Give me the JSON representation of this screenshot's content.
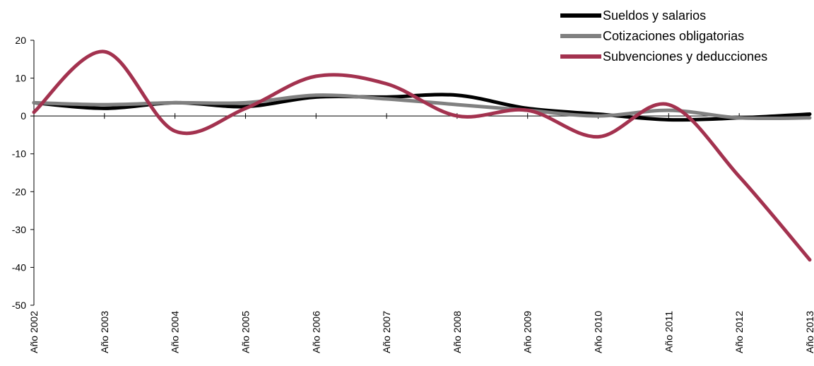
{
  "chart_data": {
    "type": "line",
    "title": "",
    "xlabel": "",
    "ylabel": "",
    "ylim": [
      -50,
      20
    ],
    "yticks": [
      20,
      10,
      0,
      -10,
      -20,
      -30,
      -40,
      -50
    ],
    "categories": [
      "Año 2002",
      "Año 2003",
      "Año 2004",
      "Año 2005",
      "Año 2006",
      "Año 2007",
      "Año 2008",
      "Año 2009",
      "Año 2010",
      "Año 2011",
      "Año 2012",
      "Año 2013"
    ],
    "grid": false,
    "legend_position": "top-right",
    "smooth": true,
    "series": [
      {
        "name": "Sueldos y salarios",
        "color": "#000000",
        "values": [
          3.5,
          2.0,
          3.5,
          2.5,
          5.0,
          5.0,
          5.5,
          2.0,
          0.5,
          -1.0,
          -0.5,
          0.5
        ]
      },
      {
        "name": "Cotizaciones obligatorias",
        "color": "#808080",
        "values": [
          3.5,
          3.0,
          3.5,
          3.5,
          5.5,
          4.5,
          3.0,
          1.5,
          0.0,
          1.5,
          -0.5,
          -0.5
        ]
      },
      {
        "name": "Subvenciones y deducciones",
        "color": "#A3324F",
        "values": [
          1.0,
          17.0,
          -4.0,
          2.0,
          10.5,
          8.5,
          0.0,
          1.5,
          -5.5,
          3.0,
          -16.0,
          -38.0
        ]
      }
    ]
  }
}
